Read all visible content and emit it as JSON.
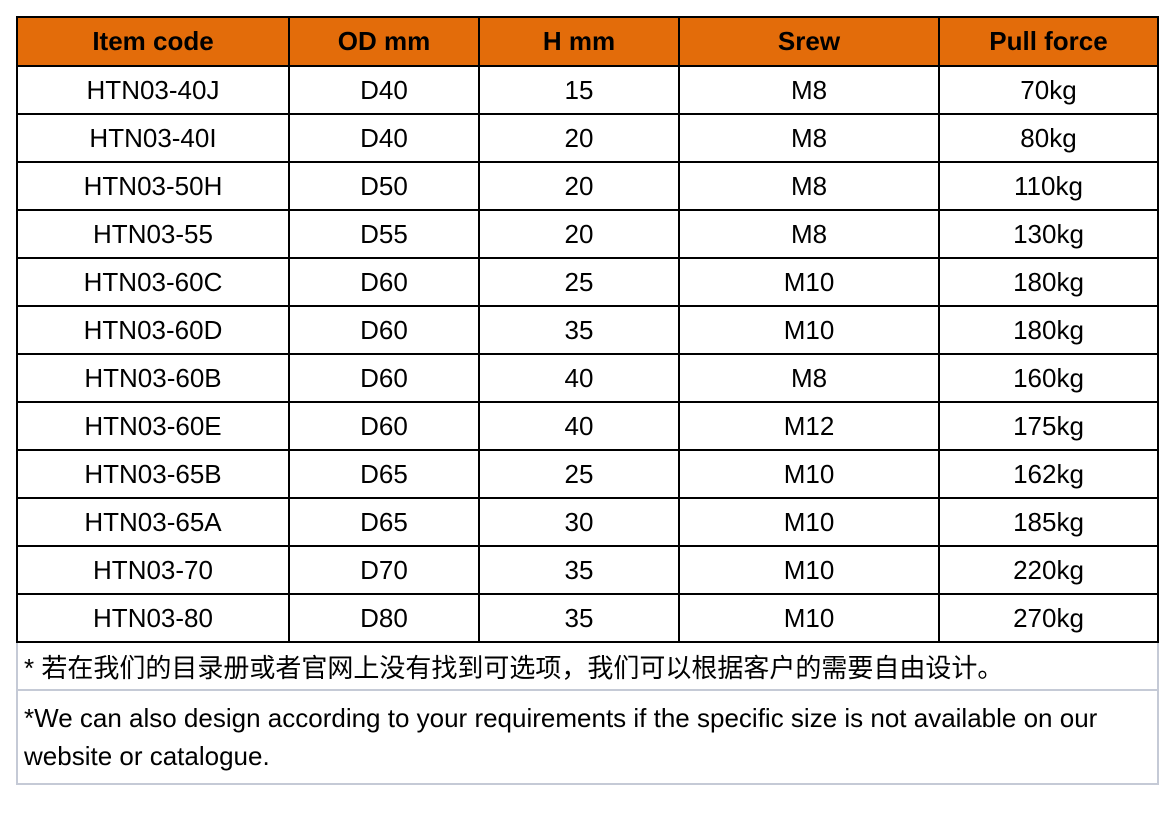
{
  "table": {
    "header_color": "#E36C0A",
    "columns": [
      "Item code",
      "OD mm",
      "H mm",
      "Srew",
      "Pull force"
    ],
    "rows": [
      [
        "HTN03-40J",
        "D40",
        "15",
        "M8",
        "70kg"
      ],
      [
        "HTN03-40I",
        "D40",
        "20",
        "M8",
        "80kg"
      ],
      [
        "HTN03-50H",
        "D50",
        "20",
        "M8",
        "110kg"
      ],
      [
        "HTN03-55",
        "D55",
        "20",
        "M8",
        "130kg"
      ],
      [
        "HTN03-60C",
        "D60",
        "25",
        "M10",
        "180kg"
      ],
      [
        "HTN03-60D",
        "D60",
        "35",
        "M10",
        "180kg"
      ],
      [
        "HTN03-60B",
        "D60",
        "40",
        "M8",
        "160kg"
      ],
      [
        "HTN03-60E",
        "D60",
        "40",
        "M12",
        "175kg"
      ],
      [
        "HTN03-65B",
        "D65",
        "25",
        "M10",
        "162kg"
      ],
      [
        "HTN03-65A",
        "D65",
        "30",
        "M10",
        "185kg"
      ],
      [
        "HTN03-70",
        "D70",
        "35",
        "M10",
        "220kg"
      ],
      [
        "HTN03-80",
        "D80",
        "35",
        "M10",
        "270kg"
      ]
    ]
  },
  "notes": {
    "chinese": "* 若在我们的目录册或者官网上没有找到可选项，我们可以根据客户的需要自由设计。",
    "english": "*We can also design according to your requirements if the specific size is not available on our website or catalogue."
  }
}
